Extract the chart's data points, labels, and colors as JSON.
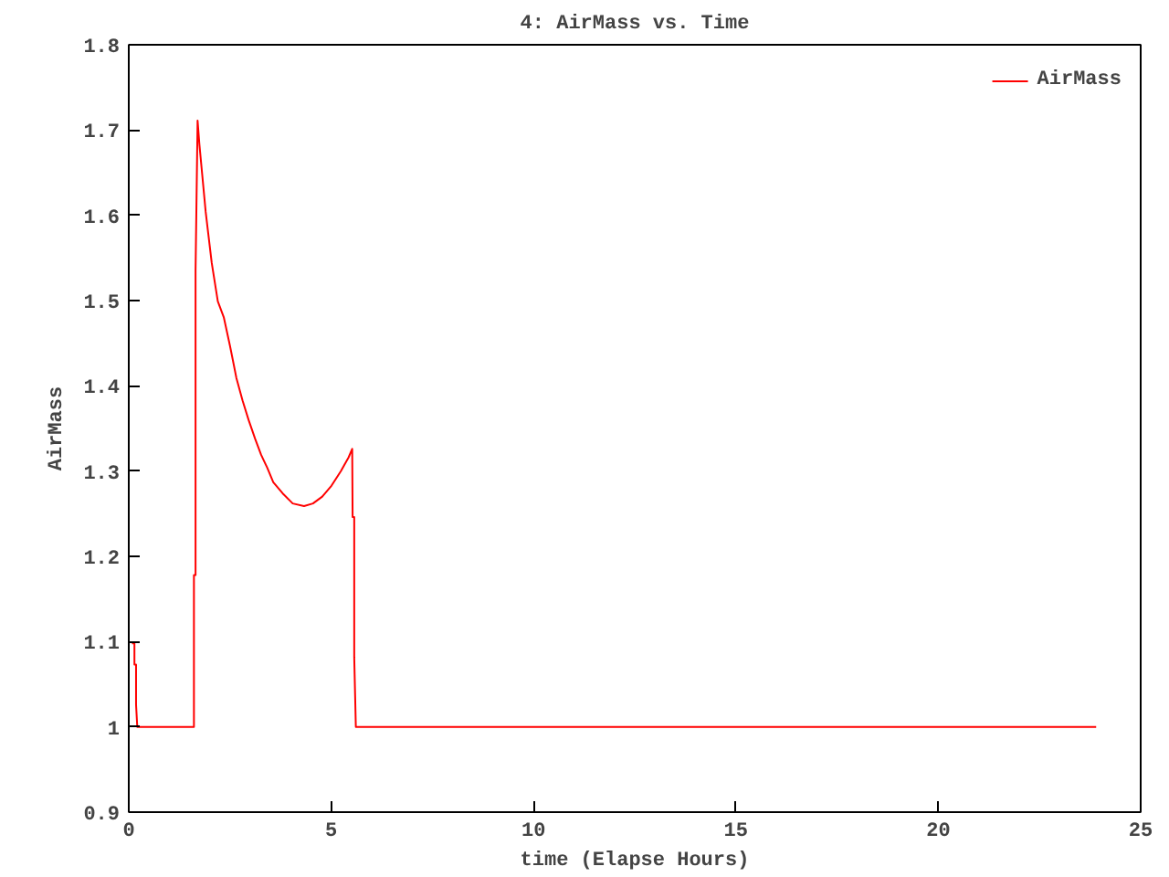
{
  "chart_data": {
    "type": "line",
    "title": "4: AirMass vs. Time",
    "xlabel": "time (Elapse Hours)",
    "ylabel": "AirMass",
    "x": [
      0.08,
      0.14,
      0.14,
      0.18,
      0.18,
      0.21,
      1.61,
      1.61,
      1.65,
      1.65,
      1.7,
      1.745,
      1.81,
      1.9,
      2.05,
      2.2,
      2.35,
      2.5,
      2.66,
      2.81,
      2.96,
      3.12,
      3.27,
      3.42,
      3.57,
      3.8,
      4.05,
      4.33,
      4.55,
      4.78,
      5.01,
      5.24,
      5.43,
      5.52,
      5.53,
      5.57,
      5.57,
      5.61,
      23.9
    ],
    "series": [
      {
        "name": "AirMass",
        "color": "#ff0000",
        "values": [
          1.098,
          1.098,
          1.073,
          1.073,
          1.026,
          1.0,
          1.0,
          1.178,
          1.178,
          1.535,
          1.711,
          1.683,
          1.65,
          1.604,
          1.544,
          1.499,
          1.48,
          1.447,
          1.409,
          1.383,
          1.36,
          1.338,
          1.319,
          1.304,
          1.287,
          1.274,
          1.262,
          1.259,
          1.262,
          1.27,
          1.283,
          1.3,
          1.316,
          1.326,
          1.246,
          1.246,
          1.082,
          1.0,
          1.0
        ]
      }
    ],
    "xlim": [
      0,
      25
    ],
    "xticks": [
      0,
      5,
      10,
      15,
      20,
      25
    ],
    "ylim": [
      0.9,
      1.8
    ],
    "yticks": [
      0.9,
      1,
      1.1,
      1.2,
      1.3,
      1.4,
      1.5,
      1.6,
      1.7,
      1.8
    ],
    "grid": false,
    "legend": "top right",
    "marker": "none",
    "line_style": "solid"
  }
}
